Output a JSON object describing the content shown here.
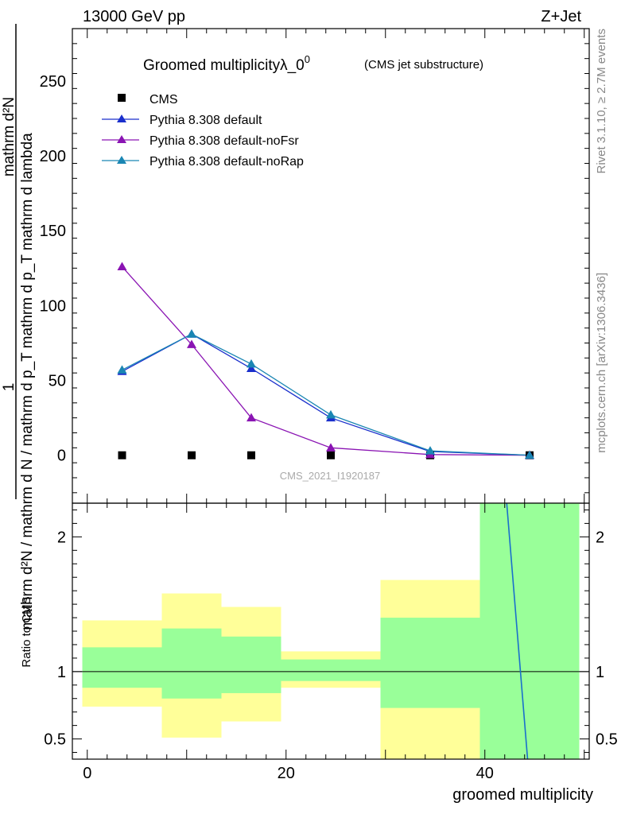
{
  "header": {
    "left": "13000 GeV pp",
    "right": "Z+Jet"
  },
  "side_text": {
    "rivet": "Rivet 3.1.10, ≥ 2.7M events",
    "mcplots": "mcplots.cern.ch [arXiv:1306.3436]"
  },
  "chart_data": [
    {
      "type": "scatter",
      "title_main": "Groomed multiplicityλ_0",
      "title_sup": "0",
      "title_sub": "(CMS jet substructure)",
      "watermark": "CMS_2021_I1920187",
      "ylabel_numerator": "1",
      "ylabel_numerator2": "mathrm d²N",
      "ylabel_denominator": "mathrm d N / mathrm d p",
      "ylabel_denominator_sub": "T",
      "ylabel_denominator2": " mathrm d p",
      "ylabel_denominator2_sub": "T",
      "ylabel_denominator3": " mathrm d lambda",
      "ylabel_text": "mathrm d²N / mathrm d N / mathrm d p_T mathrm d p_T mathrm d lambda",
      "xlim": [
        -1.5,
        50.5
      ],
      "ylim": [
        -32,
        285
      ],
      "yticks": [
        0,
        50,
        100,
        150,
        200,
        250
      ],
      "grid": false,
      "legend_position": "top-left",
      "series": [
        {
          "name": "CMS",
          "color": "#000000",
          "marker": "square",
          "x": [
            3.5,
            10.5,
            16.5,
            24.5,
            34.5,
            44.5
          ],
          "y": [
            0,
            0,
            0,
            0,
            0,
            0
          ]
        },
        {
          "name": "Pythia 8.308 default",
          "color": "#1a2fcc",
          "marker": "triangle",
          "x": [
            3.5,
            10.5,
            16.5,
            24.5,
            34.5,
            44.5
          ],
          "y": [
            56,
            81,
            58,
            25,
            2.5,
            0
          ]
        },
        {
          "name": "Pythia 8.308 default-noFsr",
          "color": "#8a14b3",
          "marker": "triangle",
          "x": [
            3.5,
            10.5,
            16.5,
            24.5,
            34.5,
            44.5
          ],
          "y": [
            126,
            74,
            25,
            5,
            0.5,
            0
          ]
        },
        {
          "name": "Pythia 8.308 default-noRap",
          "color": "#1a86b3",
          "marker": "triangle",
          "x": [
            3.5,
            10.5,
            16.5,
            24.5,
            34.5,
            44.5
          ],
          "y": [
            57,
            81,
            61,
            27,
            3,
            0
          ]
        }
      ]
    },
    {
      "type": "area",
      "ylabel": "Ratio to CMS",
      "xlabel": "groomed multiplicity",
      "xlim": [
        -1.5,
        50.5
      ],
      "ylim": [
        0.35,
        2.25
      ],
      "xticks": [
        0,
        20,
        40
      ],
      "yticks": [
        0.5,
        1,
        2
      ],
      "bins": [
        {
          "x_low": -0.5,
          "x_high": 7.5,
          "yellow": [
            0.74,
            1.38
          ],
          "green": [
            0.88,
            1.18
          ]
        },
        {
          "x_low": 7.5,
          "x_high": 13.5,
          "yellow": [
            0.51,
            1.58
          ],
          "green": [
            0.8,
            1.32
          ]
        },
        {
          "x_low": 13.5,
          "x_high": 19.5,
          "yellow": [
            0.63,
            1.48
          ],
          "green": [
            0.84,
            1.26
          ]
        },
        {
          "x_low": 19.5,
          "x_high": 29.5,
          "yellow": [
            0.88,
            1.15
          ],
          "green": [
            0.93,
            1.09
          ]
        },
        {
          "x_low": 29.5,
          "x_high": 39.5,
          "yellow": [
            0.35,
            1.68
          ],
          "green": [
            0.73,
            1.4
          ]
        },
        {
          "x_low": 39.5,
          "x_high": 49.5,
          "yellow": [
            0.35,
            2.25
          ],
          "green": [
            0.35,
            2.25
          ]
        }
      ],
      "ratio_line": {
        "color": "#1a6fcc",
        "x": [
          42.2,
          44.3
        ],
        "y": [
          2.25,
          0.35
        ]
      },
      "yellow_color": "#ffff99",
      "green_color": "#99ff99"
    }
  ]
}
